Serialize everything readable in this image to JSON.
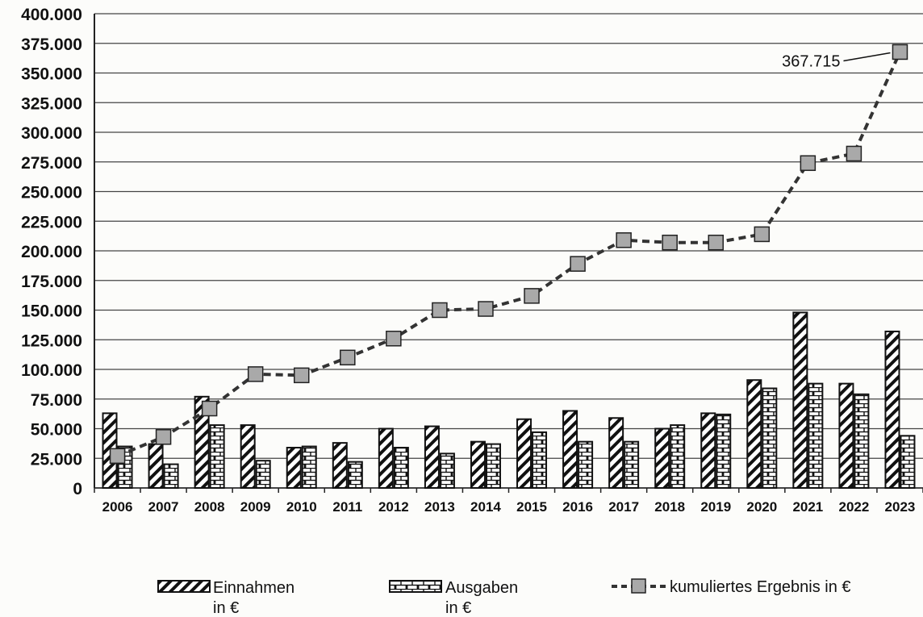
{
  "chart_data": {
    "type": "bar",
    "categories": [
      "2006",
      "2007",
      "2008",
      "2009",
      "2010",
      "2011",
      "2012",
      "2013",
      "2014",
      "2015",
      "2016",
      "2017",
      "2018",
      "2019",
      "2020",
      "2021",
      "2022",
      "2023"
    ],
    "series": [
      {
        "name": "Einnahmen in €",
        "type": "bar",
        "pattern": "diagonal-hatch",
        "values": [
          63000,
          37000,
          77000,
          53000,
          34000,
          38000,
          50000,
          52000,
          39000,
          58000,
          65000,
          59000,
          50000,
          63000,
          91000,
          148000,
          88000,
          132000
        ]
      },
      {
        "name": "Ausgaben in €",
        "type": "bar",
        "pattern": "brick",
        "values": [
          35000,
          20000,
          53000,
          23000,
          35000,
          22000,
          34000,
          29000,
          37000,
          47000,
          39000,
          39000,
          53000,
          62000,
          84000,
          88000,
          79000,
          44000
        ]
      },
      {
        "name": "kumuliertes Ergebnis in €",
        "type": "line",
        "style": "dashed",
        "marker": "square",
        "values": [
          27000,
          43000,
          67000,
          96000,
          95000,
          110000,
          126000,
          150000,
          151000,
          162000,
          189000,
          209000,
          207000,
          207000,
          214000,
          274000,
          282000,
          367715
        ]
      }
    ],
    "y_ticks": [
      "0",
      "25.000",
      "50.000",
      "75.000",
      "100.000",
      "125.000",
      "150.000",
      "175.000",
      "200.000",
      "225.000",
      "250.000",
      "275.000",
      "300.000",
      "325.000",
      "350.000",
      "375.000",
      "400.000"
    ],
    "ylim": [
      0,
      400000
    ],
    "grid": true,
    "legend": {
      "placement": "bottom",
      "einnahmen": [
        "Einnahmen",
        "in €"
      ],
      "ausgaben": [
        "Ausgaben",
        "in €"
      ],
      "kumuliert": "kumuliertes Ergebnis in €"
    },
    "annotations": [
      {
        "text": "367.715",
        "category": "2023",
        "series": "kumuliertes Ergebnis in €"
      }
    ],
    "colors": {
      "line": "#333333",
      "marker_fill": "#a9a9a9",
      "bar_stroke": "#111111",
      "grid": "#444444"
    }
  }
}
